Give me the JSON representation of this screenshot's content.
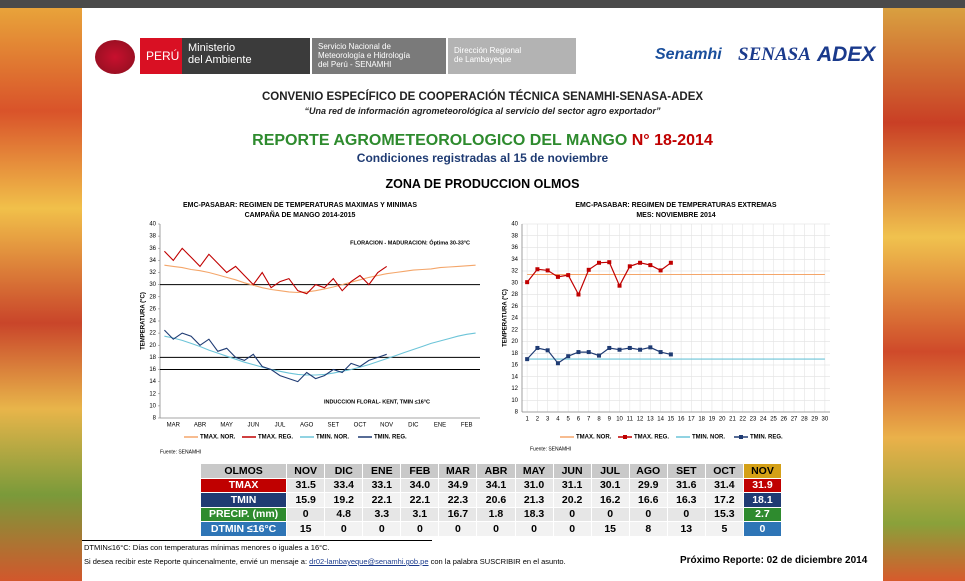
{
  "logos": {
    "peru": "PERÚ",
    "ministerio": [
      "Ministerio",
      "del Ambiente"
    ],
    "senamhi": [
      "Servicio Nacional de",
      "Meteorología e Hidrología",
      "del Perú - SENAMHI"
    ],
    "direccion": [
      "Dirección Regional",
      "de Lambayeque"
    ],
    "partners": [
      "Senamhi",
      "SENASA",
      "ADEX"
    ]
  },
  "heading": {
    "convenio": "CONVENIO ESPECÍFICO DE COOPERACIÓN TÉCNICA SENAMHI-SENASA-ADEX",
    "tagline": "“Una red de información agrometeorológica al servicio del sector agro exportador”",
    "report": "REPORTE AGROMETEOROLOGICO DEL MANGO",
    "number": "N° 18-2014",
    "conditions": "Condiciones registradas al 15 de noviembre",
    "zone": "ZONA DE PRODUCCION OLMOS"
  },
  "chart_data": [
    {
      "type": "line",
      "title": "EMC-PASABAR: REGIMEN DE TEMPERATURAS MAXIMAS Y MINIMAS",
      "subtitle": "CAMPAÑA DE MANGO 2014-2015",
      "y_label": "TEMPERATURA (°C)",
      "source": "Fuente: SENAMHI",
      "grid": false,
      "categories": [
        "MAR",
        null,
        null,
        "ABR",
        null,
        null,
        "MAY",
        null,
        null,
        "JUN",
        null,
        null,
        "JUL",
        null,
        null,
        "AGO",
        null,
        null,
        "SET",
        null,
        null,
        "OCT",
        null,
        null,
        "NOV",
        null,
        null,
        "DIC",
        null,
        null,
        "ENE",
        null,
        null,
        "FEB",
        null,
        null
      ],
      "ylim": [
        8,
        40
      ],
      "yticks": [
        8,
        10,
        12,
        14,
        16,
        18,
        20,
        22,
        24,
        26,
        28,
        30,
        32,
        34,
        36,
        38,
        40
      ],
      "reference_lines": [
        30,
        18,
        16
      ],
      "annotations": [
        "FLORACION - MADURACION: Óptima 30-33°C",
        "INDUCCION FLORAL- KENT, TMIN ≤16°C"
      ],
      "series": [
        {
          "name": "TMAX. NOR.",
          "color": "#f4a66a",
          "values": [
            33.2,
            33,
            32.8,
            32.5,
            32.3,
            32,
            31.6,
            31.2,
            30.8,
            30.3,
            29.9,
            29.5,
            29.2,
            29,
            28.8,
            28.7,
            28.8,
            29,
            29.3,
            29.6,
            30,
            30.4,
            30.8,
            31.2,
            31.5,
            31.8,
            32,
            32.2,
            32.4,
            32.5,
            32.6,
            32.8,
            32.9,
            33,
            33.1,
            33.2
          ]
        },
        {
          "name": "TMAX. REG.",
          "color": "#c00000",
          "values": [
            35.5,
            34,
            36,
            34.5,
            33,
            35,
            33.5,
            32,
            33,
            31.5,
            30,
            32,
            29.5,
            30.5,
            31,
            29,
            28.5,
            30,
            29.5,
            31,
            29,
            30.5,
            31.5,
            30,
            32,
            33,
            null,
            null,
            null,
            null,
            null,
            null,
            null,
            null,
            null,
            null
          ]
        },
        {
          "name": "TMIN. NOR.",
          "color": "#6cc4d8",
          "values": [
            21.5,
            21.2,
            20.8,
            20.3,
            19.8,
            19.2,
            18.7,
            18.2,
            17.7,
            17.2,
            16.8,
            16.4,
            16,
            15.7,
            15.4,
            15.2,
            15.1,
            15.1,
            15.2,
            15.4,
            15.7,
            16,
            16.4,
            16.8,
            17.3,
            17.8,
            18.3,
            18.8,
            19.3,
            19.8,
            20.3,
            20.7,
            21.1,
            21.5,
            21.8,
            22
          ]
        },
        {
          "name": "TMIN. REG.",
          "color": "#1f3b73",
          "values": [
            22.5,
            21,
            22,
            21.5,
            20,
            21,
            19,
            19.5,
            18,
            17.5,
            18.5,
            16.5,
            16,
            15,
            14.5,
            14,
            15.5,
            14.5,
            15,
            16,
            15.5,
            17,
            16.5,
            17.5,
            18,
            18.5,
            null,
            null,
            null,
            null,
            null,
            null,
            null,
            null,
            null,
            null
          ]
        }
      ]
    },
    {
      "type": "line",
      "title": "EMC-PASABAR: REGIMEN DE TEMPERATURAS EXTREMAS",
      "subtitle": "MES: NOVIEMBRE 2014",
      "y_label": "TEMPERATURA (°C)",
      "source": "Fuente: SENAMHI",
      "grid": true,
      "categories": [
        "1",
        "2",
        "3",
        "4",
        "5",
        "6",
        "7",
        "8",
        "9",
        "10",
        "11",
        "12",
        "13",
        "14",
        "15",
        "16",
        "17",
        "18",
        "19",
        "20",
        "21",
        "22",
        "23",
        "24",
        "25",
        "26",
        "27",
        "28",
        "29",
        "30"
      ],
      "ylim": [
        8,
        40
      ],
      "yticks": [
        8,
        10,
        12,
        14,
        16,
        18,
        20,
        22,
        24,
        26,
        28,
        30,
        32,
        34,
        36,
        38,
        40
      ],
      "series": [
        {
          "name": "TMAX. NOR.",
          "color": "#f4a66a",
          "values": [
            31.4,
            31.4,
            31.4,
            31.4,
            31.4,
            31.4,
            31.4,
            31.4,
            31.4,
            31.4,
            31.4,
            31.4,
            31.4,
            31.4,
            31.4,
            31.4,
            31.4,
            31.4,
            31.4,
            31.4,
            31.4,
            31.4,
            31.4,
            31.4,
            31.4,
            31.4,
            31.4,
            31.4,
            31.4,
            31.4
          ]
        },
        {
          "name": "TMAX. REG.",
          "color": "#c00000",
          "marker": "square",
          "values": [
            30.1,
            32.3,
            32.1,
            31,
            31.3,
            28,
            32.2,
            33.4,
            33.5,
            29.5,
            32.8,
            33.4,
            33,
            32.1,
            33.4,
            null,
            null,
            null,
            null,
            null,
            null,
            null,
            null,
            null,
            null,
            null,
            null,
            null,
            null,
            null
          ]
        },
        {
          "name": "TMIN. NOR.",
          "color": "#6cc4d8",
          "values": [
            17,
            17,
            17,
            17,
            17,
            17,
            17,
            17,
            17,
            17,
            17,
            17,
            17,
            17,
            17,
            17,
            17,
            17,
            17,
            17,
            17,
            17,
            17,
            17,
            17,
            17,
            17,
            17,
            17,
            17
          ]
        },
        {
          "name": "TMIN. REG.",
          "color": "#1f3b73",
          "marker": "square",
          "values": [
            17,
            18.9,
            18.5,
            16.3,
            17.5,
            18.2,
            18.2,
            17.6,
            18.9,
            18.6,
            18.9,
            18.6,
            19,
            18.2,
            17.8,
            null,
            null,
            null,
            null,
            null,
            null,
            null,
            null,
            null,
            null,
            null,
            null,
            null,
            null,
            null
          ]
        }
      ]
    }
  ],
  "table": {
    "header": [
      "OLMOS",
      "NOV",
      "DIC",
      "ENE",
      "FEB",
      "MAR",
      "ABR",
      "MAY",
      "JUN",
      "JUL",
      "AGO",
      "SET",
      "OCT",
      "NOV"
    ],
    "rows": [
      [
        "TMAX",
        "31.5",
        "33.4",
        "33.1",
        "34.0",
        "34.9",
        "34.1",
        "31.0",
        "31.1",
        "30.1",
        "29.9",
        "31.6",
        "31.4",
        "31.9"
      ],
      [
        "TMIN",
        "15.9",
        "19.2",
        "22.1",
        "22.1",
        "22.3",
        "20.6",
        "21.3",
        "20.2",
        "16.2",
        "16.6",
        "16.3",
        "17.2",
        "18.1"
      ],
      [
        "PRECIP. (mm)",
        "0",
        "4.8",
        "3.3",
        "3.1",
        "16.7",
        "1.8",
        "18.3",
        "0",
        "0",
        "0",
        "0",
        "15.3",
        "2.7"
      ],
      [
        "DTMIN ≤16°C",
        "15",
        "0",
        "0",
        "0",
        "0",
        "0",
        "0",
        "0",
        "15",
        "8",
        "13",
        "5",
        "0"
      ]
    ]
  },
  "footer": {
    "note": "DTMIN≤16°C: Días con temperaturas mínimas menores o iguales a 16°C.",
    "subscribe": [
      "Si desea recibir este Reporte quincenalmente, envié un mensaje a:",
      "dr02-lambayeque@senamhi.gob.pe",
      "con la palabra SUSCRIBIR en el asunto."
    ],
    "next": "Próximo Reporte: 02 de diciembre 2014"
  }
}
